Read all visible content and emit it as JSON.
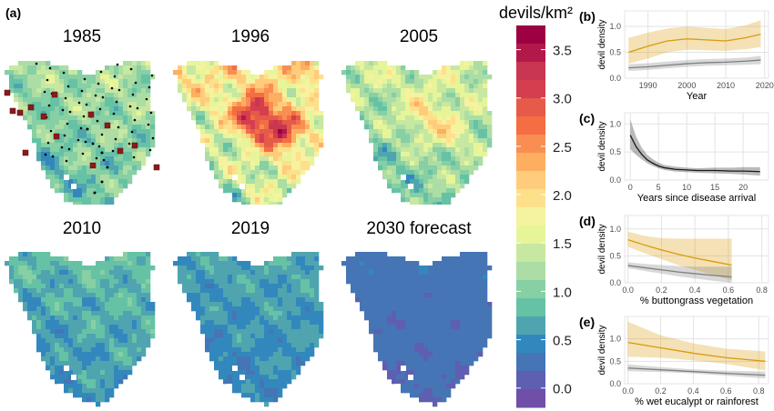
{
  "panel_labels": {
    "a": "(a)",
    "b": "(b)",
    "c": "(c)",
    "d": "(d)",
    "e": "(e)"
  },
  "maps": [
    {
      "title": "1985",
      "level": 0.85,
      "hot": 0.0,
      "sites": true
    },
    {
      "title": "1996",
      "level": 1.35,
      "hot": 1.6,
      "sites": false
    },
    {
      "title": "2005",
      "level": 1.0,
      "hot": 0.6,
      "sites": false
    },
    {
      "title": "2010",
      "level": 0.55,
      "hot": 0.0,
      "sites": false
    },
    {
      "title": "2019",
      "level": 0.45,
      "hot": 0.0,
      "sites": false
    },
    {
      "title": "2030 forecast",
      "level": 0.2,
      "hot": 0.0,
      "sites": false
    }
  ],
  "colorbar": {
    "title": "devils/km²",
    "ticks": [
      "3.5",
      "3.0",
      "2.5",
      "2.0",
      "1.5",
      "1.0",
      "0.5",
      "0.0"
    ],
    "tick_values": [
      3.5,
      3.0,
      2.5,
      2.0,
      1.5,
      1.0,
      0.5,
      0.0
    ],
    "range": [
      -0.2,
      3.75
    ],
    "colors": [
      "#9e0142",
      "#b3184b",
      "#c83651",
      "#d53e4f",
      "#e55a49",
      "#f46d43",
      "#f98e52",
      "#fdae61",
      "#fecc7b",
      "#fee08b",
      "#f5f2a0",
      "#e6f598",
      "#c7e8a0",
      "#abdda4",
      "#87cfa4",
      "#66c2a5",
      "#4fa4b0",
      "#3288bd",
      "#4575b4",
      "#5e5fb0",
      "#6f4fa8"
    ]
  },
  "chart_data": [
    {
      "panel": "b",
      "type": "line",
      "xlabel": "Year",
      "ylabel": "devil density",
      "xlim": [
        1984,
        2021
      ],
      "ylim": [
        0,
        1.3
      ],
      "xticks": [
        "1990",
        "2000",
        "2010",
        "2020"
      ],
      "yticks": [
        "0.0",
        "0.5",
        "1.0"
      ],
      "series": [
        {
          "color": "#d99a0b",
          "x": [
            1985,
            1990,
            1995,
            2000,
            2005,
            2010,
            2015,
            2019
          ],
          "values": [
            0.5,
            0.62,
            0.72,
            0.76,
            0.74,
            0.72,
            0.78,
            0.85
          ],
          "lower": [
            0.28,
            0.38,
            0.5,
            0.55,
            0.54,
            0.53,
            0.56,
            0.6
          ],
          "upper": [
            0.78,
            0.88,
            0.96,
            1.0,
            0.97,
            0.95,
            1.02,
            1.12
          ]
        },
        {
          "color": "#7f7f7f",
          "x": [
            1985,
            1990,
            1995,
            2000,
            2005,
            2010,
            2015,
            2019
          ],
          "values": [
            0.2,
            0.22,
            0.25,
            0.28,
            0.3,
            0.31,
            0.33,
            0.35
          ],
          "lower": [
            0.14,
            0.16,
            0.19,
            0.22,
            0.24,
            0.25,
            0.26,
            0.27
          ],
          "upper": [
            0.27,
            0.29,
            0.32,
            0.35,
            0.37,
            0.38,
            0.4,
            0.43
          ]
        }
      ]
    },
    {
      "panel": "c",
      "type": "line",
      "xlabel": "Years since disease arrival",
      "ylabel": "devil density",
      "xlim": [
        -1,
        24.5
      ],
      "ylim": [
        0,
        1.2
      ],
      "xticks": [
        "0",
        "5",
        "10",
        "15",
        "20"
      ],
      "yticks": [
        "0.0",
        "0.5",
        "1.0"
      ],
      "series": [
        {
          "color": "#1a1a1a",
          "x": [
            0,
            1,
            2,
            3,
            4,
            5,
            6,
            8,
            10,
            12,
            15,
            18,
            20,
            23
          ],
          "values": [
            0.8,
            0.6,
            0.46,
            0.36,
            0.3,
            0.25,
            0.22,
            0.19,
            0.18,
            0.17,
            0.17,
            0.16,
            0.16,
            0.15
          ],
          "lower": [
            0.55,
            0.45,
            0.37,
            0.3,
            0.25,
            0.21,
            0.18,
            0.15,
            0.14,
            0.13,
            0.12,
            0.11,
            0.1,
            0.08
          ],
          "upper": [
            1.08,
            0.78,
            0.58,
            0.45,
            0.37,
            0.31,
            0.27,
            0.24,
            0.22,
            0.21,
            0.22,
            0.22,
            0.23,
            0.23
          ]
        }
      ]
    },
    {
      "panel": "d",
      "type": "line",
      "xlabel": "% buttongrass vegetation",
      "ylabel": "devil density",
      "xlim": [
        -0.02,
        0.84
      ],
      "ylim": [
        0,
        1.25
      ],
      "xticks": [
        "0.0",
        "0.2",
        "0.4",
        "0.6",
        "0.8"
      ],
      "yticks": [
        "0.0",
        "0.5",
        "1.0"
      ],
      "series": [
        {
          "color": "#d99a0b",
          "x": [
            0,
            0.1,
            0.2,
            0.3,
            0.4,
            0.5,
            0.62
          ],
          "values": [
            0.8,
            0.7,
            0.61,
            0.53,
            0.46,
            0.4,
            0.33
          ],
          "lower": [
            0.67,
            0.55,
            0.44,
            0.33,
            0.24,
            0.15,
            0.05
          ],
          "upper": [
            0.95,
            0.87,
            0.83,
            0.82,
            0.82,
            0.82,
            0.82
          ]
        },
        {
          "color": "#7f7f7f",
          "x": [
            0,
            0.1,
            0.2,
            0.3,
            0.4,
            0.5,
            0.62
          ],
          "values": [
            0.32,
            0.28,
            0.24,
            0.2,
            0.17,
            0.14,
            0.11
          ],
          "lower": [
            0.27,
            0.22,
            0.17,
            0.12,
            0.08,
            0.04,
            0.0
          ],
          "upper": [
            0.38,
            0.35,
            0.33,
            0.31,
            0.3,
            0.3,
            0.3
          ]
        }
      ]
    },
    {
      "panel": "e",
      "type": "line",
      "xlabel": "% wet eucalypt or rainforest",
      "ylabel": "devil density",
      "xlim": [
        -0.02,
        0.86
      ],
      "ylim": [
        0,
        1.5
      ],
      "xticks": [
        "0.0",
        "0.2",
        "0.4",
        "0.6",
        "0.8"
      ],
      "yticks": [
        "0.0",
        "0.5",
        "1.0"
      ],
      "series": [
        {
          "color": "#d99a0b",
          "x": [
            0,
            0.2,
            0.4,
            0.6,
            0.84
          ],
          "values": [
            0.92,
            0.8,
            0.68,
            0.58,
            0.5
          ],
          "lower": [
            0.6,
            0.58,
            0.52,
            0.44,
            0.3
          ],
          "upper": [
            1.38,
            1.08,
            0.9,
            0.78,
            0.72
          ]
        },
        {
          "color": "#7f7f7f",
          "x": [
            0,
            0.2,
            0.4,
            0.6,
            0.84
          ],
          "values": [
            0.35,
            0.31,
            0.27,
            0.23,
            0.19
          ],
          "lower": [
            0.28,
            0.26,
            0.23,
            0.18,
            0.12
          ],
          "upper": [
            0.43,
            0.37,
            0.32,
            0.29,
            0.27
          ]
        }
      ]
    }
  ]
}
